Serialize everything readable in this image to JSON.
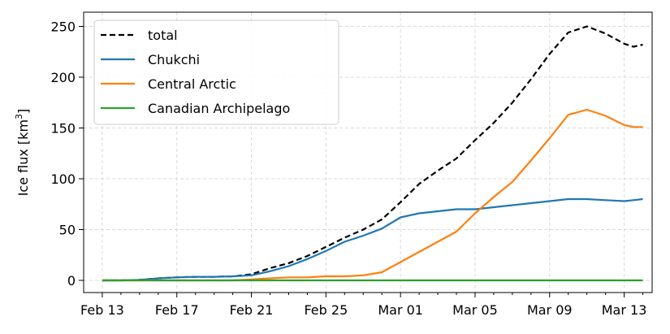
{
  "chart_data": {
    "type": "line",
    "ylabel": "Ice flux [km",
    "ylabel_sup": "3",
    "ylabel_end": "]",
    "xlabel": "",
    "x_ticks": [
      "Feb 13",
      "Feb 17",
      "Feb 21",
      "Feb 25",
      "Mar 01",
      "Mar 05",
      "Mar 09",
      "Mar 13"
    ],
    "y_ticks": [
      "0",
      "50",
      "100",
      "150",
      "200",
      "250"
    ],
    "xlim": [
      -1,
      29.5
    ],
    "ylim": [
      -12,
      264
    ],
    "grid": true,
    "legend_position": "upper left",
    "x": [
      0,
      1,
      2,
      3,
      4,
      5,
      6,
      7,
      8,
      9,
      10,
      11,
      12,
      13,
      14,
      15,
      16,
      17,
      18,
      19,
      20,
      21,
      22,
      23,
      24,
      25,
      26,
      27,
      28,
      28.5,
      29
    ],
    "series": [
      {
        "name": "total",
        "color": "#000000",
        "dash": true,
        "values": [
          0,
          0,
          0.5,
          2,
          3,
          3.5,
          3.5,
          4,
          6,
          12,
          17,
          24,
          33,
          42,
          50,
          60,
          77,
          95,
          108,
          120,
          138,
          155,
          175,
          198,
          223,
          244,
          250,
          243,
          233,
          230,
          232
        ]
      },
      {
        "name": "Chukchi",
        "color": "#1f77b4",
        "dash": false,
        "values": [
          0,
          0,
          0.5,
          2,
          3,
          3.5,
          3.5,
          4,
          5,
          9,
          14,
          21,
          29,
          38,
          44,
          51,
          62,
          66,
          68,
          70,
          70,
          72,
          74,
          76,
          78,
          80,
          80,
          79,
          78,
          79,
          80
        ]
      },
      {
        "name": "Central Arctic",
        "color": "#ff7f0e",
        "dash": false,
        "values": [
          0,
          0,
          0,
          0,
          0,
          0,
          0,
          0,
          1,
          2,
          3,
          3,
          4,
          4,
          5,
          8,
          18,
          28,
          38,
          48,
          66,
          82,
          97,
          118,
          140,
          163,
          168,
          162,
          153,
          151,
          151
        ]
      },
      {
        "name": "Canadian Archipelago",
        "color": "#2ca02c",
        "dash": false,
        "values": [
          0,
          0,
          0,
          0,
          0,
          0,
          0,
          0,
          0,
          0,
          0,
          0,
          0,
          0,
          0,
          0,
          0,
          0,
          0,
          0,
          0,
          0,
          0,
          0,
          0,
          0,
          0,
          0,
          0,
          0,
          0
        ]
      }
    ]
  }
}
